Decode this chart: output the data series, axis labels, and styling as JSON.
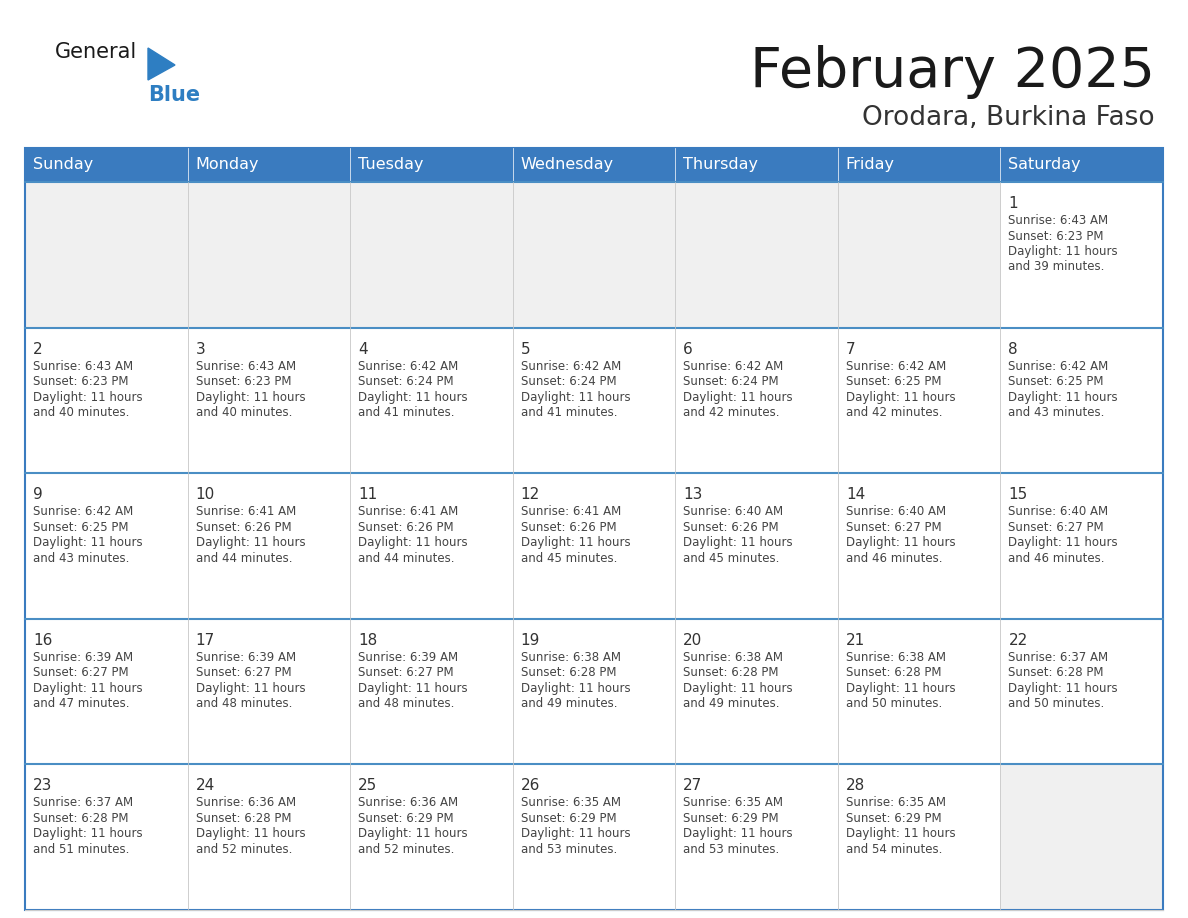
{
  "title": "February 2025",
  "subtitle": "Orodara, Burkina Faso",
  "header_color": "#3A7BBF",
  "header_text_color": "#FFFFFF",
  "cell_bg_color": "#FFFFFF",
  "cell_bg_empty": "#F0F0F0",
  "cell_border_color": "#CCCCCC",
  "row_top_line_color": "#4A90D9",
  "day_num_color": "#333333",
  "cell_text_color": "#444444",
  "days_of_week": [
    "Sunday",
    "Monday",
    "Tuesday",
    "Wednesday",
    "Thursday",
    "Friday",
    "Saturday"
  ],
  "title_color": "#1a1a1a",
  "subtitle_color": "#333333",
  "logo_general_color": "#1a1a1a",
  "logo_blue_color": "#2E7EC2",
  "calendar": [
    [
      null,
      null,
      null,
      null,
      null,
      null,
      1
    ],
    [
      2,
      3,
      4,
      5,
      6,
      7,
      8
    ],
    [
      9,
      10,
      11,
      12,
      13,
      14,
      15
    ],
    [
      16,
      17,
      18,
      19,
      20,
      21,
      22
    ],
    [
      23,
      24,
      25,
      26,
      27,
      28,
      null
    ]
  ],
  "cell_data": {
    "1": {
      "sunrise": "6:43 AM",
      "sunset": "6:23 PM",
      "daylight": "11 hours and 39 minutes."
    },
    "2": {
      "sunrise": "6:43 AM",
      "sunset": "6:23 PM",
      "daylight": "11 hours and 40 minutes."
    },
    "3": {
      "sunrise": "6:43 AM",
      "sunset": "6:23 PM",
      "daylight": "11 hours and 40 minutes."
    },
    "4": {
      "sunrise": "6:42 AM",
      "sunset": "6:24 PM",
      "daylight": "11 hours and 41 minutes."
    },
    "5": {
      "sunrise": "6:42 AM",
      "sunset": "6:24 PM",
      "daylight": "11 hours and 41 minutes."
    },
    "6": {
      "sunrise": "6:42 AM",
      "sunset": "6:24 PM",
      "daylight": "11 hours and 42 minutes."
    },
    "7": {
      "sunrise": "6:42 AM",
      "sunset": "6:25 PM",
      "daylight": "11 hours and 42 minutes."
    },
    "8": {
      "sunrise": "6:42 AM",
      "sunset": "6:25 PM",
      "daylight": "11 hours and 43 minutes."
    },
    "9": {
      "sunrise": "6:42 AM",
      "sunset": "6:25 PM",
      "daylight": "11 hours and 43 minutes."
    },
    "10": {
      "sunrise": "6:41 AM",
      "sunset": "6:26 PM",
      "daylight": "11 hours and 44 minutes."
    },
    "11": {
      "sunrise": "6:41 AM",
      "sunset": "6:26 PM",
      "daylight": "11 hours and 44 minutes."
    },
    "12": {
      "sunrise": "6:41 AM",
      "sunset": "6:26 PM",
      "daylight": "11 hours and 45 minutes."
    },
    "13": {
      "sunrise": "6:40 AM",
      "sunset": "6:26 PM",
      "daylight": "11 hours and 45 minutes."
    },
    "14": {
      "sunrise": "6:40 AM",
      "sunset": "6:27 PM",
      "daylight": "11 hours and 46 minutes."
    },
    "15": {
      "sunrise": "6:40 AM",
      "sunset": "6:27 PM",
      "daylight": "11 hours and 46 minutes."
    },
    "16": {
      "sunrise": "6:39 AM",
      "sunset": "6:27 PM",
      "daylight": "11 hours and 47 minutes."
    },
    "17": {
      "sunrise": "6:39 AM",
      "sunset": "6:27 PM",
      "daylight": "11 hours and 48 minutes."
    },
    "18": {
      "sunrise": "6:39 AM",
      "sunset": "6:27 PM",
      "daylight": "11 hours and 48 minutes."
    },
    "19": {
      "sunrise": "6:38 AM",
      "sunset": "6:28 PM",
      "daylight": "11 hours and 49 minutes."
    },
    "20": {
      "sunrise": "6:38 AM",
      "sunset": "6:28 PM",
      "daylight": "11 hours and 49 minutes."
    },
    "21": {
      "sunrise": "6:38 AM",
      "sunset": "6:28 PM",
      "daylight": "11 hours and 50 minutes."
    },
    "22": {
      "sunrise": "6:37 AM",
      "sunset": "6:28 PM",
      "daylight": "11 hours and 50 minutes."
    },
    "23": {
      "sunrise": "6:37 AM",
      "sunset": "6:28 PM",
      "daylight": "11 hours and 51 minutes."
    },
    "24": {
      "sunrise": "6:36 AM",
      "sunset": "6:28 PM",
      "daylight": "11 hours and 52 minutes."
    },
    "25": {
      "sunrise": "6:36 AM",
      "sunset": "6:29 PM",
      "daylight": "11 hours and 52 minutes."
    },
    "26": {
      "sunrise": "6:35 AM",
      "sunset": "6:29 PM",
      "daylight": "11 hours and 53 minutes."
    },
    "27": {
      "sunrise": "6:35 AM",
      "sunset": "6:29 PM",
      "daylight": "11 hours and 53 minutes."
    },
    "28": {
      "sunrise": "6:35 AM",
      "sunset": "6:29 PM",
      "daylight": "11 hours and 54 minutes."
    }
  }
}
